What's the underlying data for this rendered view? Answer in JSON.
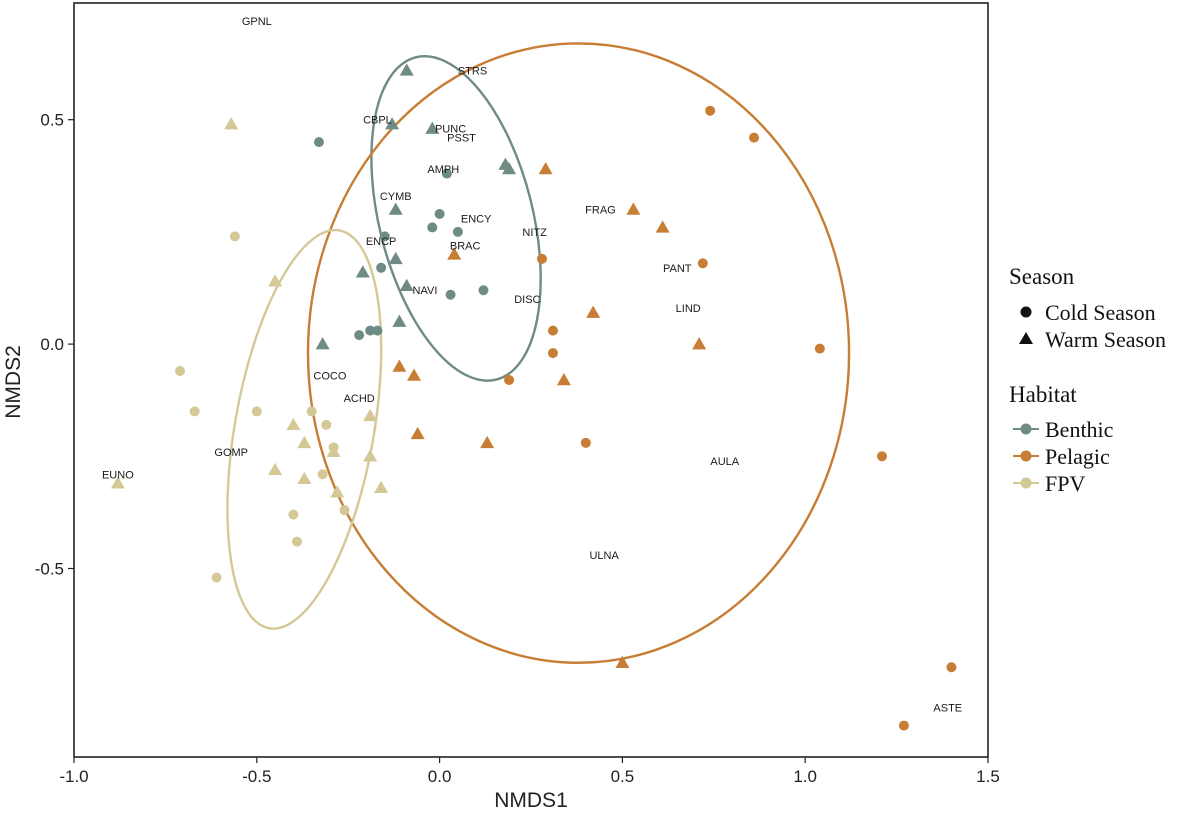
{
  "chart_data": {
    "type": "scatter",
    "title": "",
    "xlabel": "NMDS1",
    "ylabel": "NMDS2",
    "xlim": [
      -1.0,
      1.5
    ],
    "ylim": [
      -0.92,
      0.76
    ],
    "xticks": [
      -1.0,
      -0.5,
      0.0,
      0.5,
      1.0,
      1.5
    ],
    "xtick_labels": [
      "-1.0",
      "-0.5",
      "0.0",
      "0.5",
      "1.0",
      "1.5"
    ],
    "yticks": [
      -0.5,
      0.0,
      0.5
    ],
    "ytick_labels": [
      "-0.5",
      "0.0",
      "0.5"
    ],
    "grid": false,
    "colors": {
      "Benthic": "#6f8b85",
      "Pelagic": "#c87d35",
      "FPV": "#d4c896"
    },
    "legend": {
      "position": "right",
      "season_title": "Season",
      "season_entries": [
        {
          "label": "Cold Season",
          "shape": "circle"
        },
        {
          "label": "Warm Season",
          "shape": "triangle"
        }
      ],
      "habitat_title": "Habitat",
      "habitat_entries": [
        {
          "label": "Benthic",
          "habitat": "Benthic"
        },
        {
          "label": "Pelagic",
          "habitat": "Pelagic"
        },
        {
          "label": "FPV",
          "habitat": "FPV"
        }
      ]
    },
    "ellipses": [
      {
        "habitat": "Benthic",
        "cx": 0.045,
        "cy": 0.28,
        "rx": 0.21,
        "ry": 0.37,
        "angle": 14
      },
      {
        "habitat": "Pelagic",
        "cx": 0.38,
        "cy": -0.02,
        "rx": 0.74,
        "ry": 0.69,
        "angle": 0
      },
      {
        "habitat": "FPV",
        "cx": -0.37,
        "cy": -0.19,
        "rx": 0.19,
        "ry": 0.45,
        "angle": -10
      }
    ],
    "points": [
      {
        "habitat": "Benthic",
        "season": "Cold",
        "x": -0.33,
        "y": 0.45
      },
      {
        "habitat": "Benthic",
        "season": "Cold",
        "x": 0.02,
        "y": 0.38
      },
      {
        "habitat": "Benthic",
        "season": "Cold",
        "x": 0.0,
        "y": 0.29
      },
      {
        "habitat": "Benthic",
        "season": "Cold",
        "x": -0.02,
        "y": 0.26
      },
      {
        "habitat": "Benthic",
        "season": "Cold",
        "x": 0.05,
        "y": 0.25
      },
      {
        "habitat": "Benthic",
        "season": "Cold",
        "x": -0.15,
        "y": 0.24
      },
      {
        "habitat": "Benthic",
        "season": "Cold",
        "x": -0.16,
        "y": 0.17
      },
      {
        "habitat": "Benthic",
        "season": "Cold",
        "x": 0.03,
        "y": 0.11
      },
      {
        "habitat": "Benthic",
        "season": "Cold",
        "x": 0.12,
        "y": 0.12
      },
      {
        "habitat": "Benthic",
        "season": "Cold",
        "x": -0.22,
        "y": 0.02
      },
      {
        "habitat": "Benthic",
        "season": "Cold",
        "x": -0.19,
        "y": 0.03
      },
      {
        "habitat": "Benthic",
        "season": "Cold",
        "x": -0.17,
        "y": 0.03
      },
      {
        "habitat": "Benthic",
        "season": "Warm",
        "x": -0.09,
        "y": 0.61
      },
      {
        "habitat": "Benthic",
        "season": "Warm",
        "x": -0.13,
        "y": 0.49
      },
      {
        "habitat": "Benthic",
        "season": "Warm",
        "x": -0.02,
        "y": 0.48
      },
      {
        "habitat": "Benthic",
        "season": "Warm",
        "x": 0.18,
        "y": 0.4
      },
      {
        "habitat": "Benthic",
        "season": "Warm",
        "x": 0.19,
        "y": 0.39
      },
      {
        "habitat": "Benthic",
        "season": "Warm",
        "x": -0.12,
        "y": 0.3
      },
      {
        "habitat": "Benthic",
        "season": "Warm",
        "x": -0.12,
        "y": 0.19
      },
      {
        "habitat": "Benthic",
        "season": "Warm",
        "x": -0.21,
        "y": 0.16
      },
      {
        "habitat": "Benthic",
        "season": "Warm",
        "x": -0.09,
        "y": 0.13
      },
      {
        "habitat": "Benthic",
        "season": "Warm",
        "x": -0.11,
        "y": 0.05
      },
      {
        "habitat": "Benthic",
        "season": "Warm",
        "x": -0.32,
        "y": 0.0
      },
      {
        "habitat": "Pelagic",
        "season": "Cold",
        "x": 0.74,
        "y": 0.52
      },
      {
        "habitat": "Pelagic",
        "season": "Cold",
        "x": 0.86,
        "y": 0.46
      },
      {
        "habitat": "Pelagic",
        "season": "Cold",
        "x": 0.72,
        "y": 0.18
      },
      {
        "habitat": "Pelagic",
        "season": "Cold",
        "x": 0.28,
        "y": 0.19
      },
      {
        "habitat": "Pelagic",
        "season": "Cold",
        "x": 0.31,
        "y": 0.03
      },
      {
        "habitat": "Pelagic",
        "season": "Cold",
        "x": 0.31,
        "y": -0.02
      },
      {
        "habitat": "Pelagic",
        "season": "Cold",
        "x": 0.19,
        "y": -0.08
      },
      {
        "habitat": "Pelagic",
        "season": "Cold",
        "x": 0.4,
        "y": -0.22
      },
      {
        "habitat": "Pelagic",
        "season": "Cold",
        "x": 1.04,
        "y": -0.01
      },
      {
        "habitat": "Pelagic",
        "season": "Cold",
        "x": 1.21,
        "y": -0.25
      },
      {
        "habitat": "Pelagic",
        "season": "Cold",
        "x": 1.4,
        "y": -0.72
      },
      {
        "habitat": "Pelagic",
        "season": "Cold",
        "x": 1.27,
        "y": -0.85
      },
      {
        "habitat": "Pelagic",
        "season": "Warm",
        "x": 0.29,
        "y": 0.39
      },
      {
        "habitat": "Pelagic",
        "season": "Warm",
        "x": 0.53,
        "y": 0.3
      },
      {
        "habitat": "Pelagic",
        "season": "Warm",
        "x": 0.61,
        "y": 0.26
      },
      {
        "habitat": "Pelagic",
        "season": "Warm",
        "x": 0.04,
        "y": 0.2
      },
      {
        "habitat": "Pelagic",
        "season": "Warm",
        "x": 0.42,
        "y": 0.07
      },
      {
        "habitat": "Pelagic",
        "season": "Warm",
        "x": 0.71,
        "y": 0.0
      },
      {
        "habitat": "Pelagic",
        "season": "Warm",
        "x": -0.11,
        "y": -0.05
      },
      {
        "habitat": "Pelagic",
        "season": "Warm",
        "x": -0.07,
        "y": -0.07
      },
      {
        "habitat": "Pelagic",
        "season": "Warm",
        "x": 0.34,
        "y": -0.08
      },
      {
        "habitat": "Pelagic",
        "season": "Warm",
        "x": -0.06,
        "y": -0.2
      },
      {
        "habitat": "Pelagic",
        "season": "Warm",
        "x": 0.13,
        "y": -0.22
      },
      {
        "habitat": "Pelagic",
        "season": "Warm",
        "x": 0.5,
        "y": -0.71
      },
      {
        "habitat": "FPV",
        "season": "Cold",
        "x": -0.56,
        "y": 0.24
      },
      {
        "habitat": "FPV",
        "season": "Cold",
        "x": -0.71,
        "y": -0.06
      },
      {
        "habitat": "FPV",
        "season": "Cold",
        "x": -0.67,
        "y": -0.15
      },
      {
        "habitat": "FPV",
        "season": "Cold",
        "x": -0.5,
        "y": -0.15
      },
      {
        "habitat": "FPV",
        "season": "Cold",
        "x": -0.35,
        "y": -0.15
      },
      {
        "habitat": "FPV",
        "season": "Cold",
        "x": -0.31,
        "y": -0.18
      },
      {
        "habitat": "FPV",
        "season": "Cold",
        "x": -0.29,
        "y": -0.23
      },
      {
        "habitat": "FPV",
        "season": "Cold",
        "x": -0.32,
        "y": -0.29
      },
      {
        "habitat": "FPV",
        "season": "Cold",
        "x": -0.26,
        "y": -0.37
      },
      {
        "habitat": "FPV",
        "season": "Cold",
        "x": -0.4,
        "y": -0.38
      },
      {
        "habitat": "FPV",
        "season": "Cold",
        "x": -0.39,
        "y": -0.44
      },
      {
        "habitat": "FPV",
        "season": "Cold",
        "x": -0.61,
        "y": -0.52
      },
      {
        "habitat": "FPV",
        "season": "Warm",
        "x": -0.57,
        "y": 0.49
      },
      {
        "habitat": "FPV",
        "season": "Warm",
        "x": -0.45,
        "y": 0.14
      },
      {
        "habitat": "FPV",
        "season": "Warm",
        "x": -0.19,
        "y": -0.16
      },
      {
        "habitat": "FPV",
        "season": "Warm",
        "x": -0.4,
        "y": -0.18
      },
      {
        "habitat": "FPV",
        "season": "Warm",
        "x": -0.37,
        "y": -0.22
      },
      {
        "habitat": "FPV",
        "season": "Warm",
        "x": -0.29,
        "y": -0.24
      },
      {
        "habitat": "FPV",
        "season": "Warm",
        "x": -0.19,
        "y": -0.25
      },
      {
        "habitat": "FPV",
        "season": "Warm",
        "x": -0.45,
        "y": -0.28
      },
      {
        "habitat": "FPV",
        "season": "Warm",
        "x": -0.37,
        "y": -0.3
      },
      {
        "habitat": "FPV",
        "season": "Warm",
        "x": -0.28,
        "y": -0.33
      },
      {
        "habitat": "FPV",
        "season": "Warm",
        "x": -0.16,
        "y": -0.32
      },
      {
        "habitat": "FPV",
        "season": "Warm",
        "x": -0.88,
        "y": -0.31
      }
    ],
    "species_labels": [
      {
        "text": "GPNL",
        "x": -0.5,
        "y": 0.72
      },
      {
        "text": "STRS",
        "x": 0.09,
        "y": 0.61
      },
      {
        "text": "CBPL",
        "x": -0.17,
        "y": 0.5
      },
      {
        "text": "PUNC",
        "x": 0.03,
        "y": 0.48
      },
      {
        "text": "PSST",
        "x": 0.06,
        "y": 0.46
      },
      {
        "text": "AMPH",
        "x": 0.01,
        "y": 0.39
      },
      {
        "text": "CYMB",
        "x": -0.12,
        "y": 0.33
      },
      {
        "text": "ENCY",
        "x": 0.1,
        "y": 0.28
      },
      {
        "text": "ENCP",
        "x": -0.16,
        "y": 0.23
      },
      {
        "text": "BRAC",
        "x": 0.07,
        "y": 0.22
      },
      {
        "text": "NITZ",
        "x": 0.26,
        "y": 0.25
      },
      {
        "text": "FRAG",
        "x": 0.44,
        "y": 0.3
      },
      {
        "text": "PANT",
        "x": 0.65,
        "y": 0.17
      },
      {
        "text": "NAVI",
        "x": -0.04,
        "y": 0.12
      },
      {
        "text": "DISC",
        "x": 0.24,
        "y": 0.1
      },
      {
        "text": "LIND",
        "x": 0.68,
        "y": 0.08
      },
      {
        "text": "COCO",
        "x": -0.3,
        "y": -0.07
      },
      {
        "text": "ACHD",
        "x": -0.22,
        "y": -0.12
      },
      {
        "text": "GOMP",
        "x": -0.57,
        "y": -0.24
      },
      {
        "text": "AULA",
        "x": 0.78,
        "y": -0.26
      },
      {
        "text": "EUNO",
        "x": -0.88,
        "y": -0.29
      },
      {
        "text": "ULNA",
        "x": 0.45,
        "y": -0.47
      },
      {
        "text": "ASTE",
        "x": 1.39,
        "y": -0.81
      }
    ]
  }
}
